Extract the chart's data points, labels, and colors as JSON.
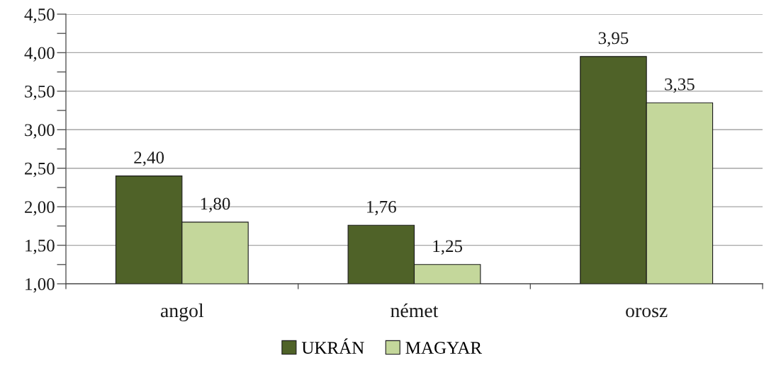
{
  "chart_data": {
    "type": "bar",
    "categories": [
      "angol",
      "német",
      "orosz"
    ],
    "series": [
      {
        "name": "UKRÁN",
        "color": "#4f6228",
        "values": [
          2.4,
          1.76,
          3.95
        ],
        "value_labels": [
          "2,40",
          "1,76",
          "3,95"
        ]
      },
      {
        "name": "MAGYAR",
        "color": "#c4d79b",
        "values": [
          1.8,
          1.25,
          3.35
        ],
        "value_labels": [
          "1,80",
          "1,25",
          "3,35"
        ]
      }
    ],
    "ylim": [
      1.0,
      4.5
    ],
    "yticks": [
      {
        "value": 1.0,
        "label": "1,00"
      },
      {
        "value": 1.25,
        "label": null
      },
      {
        "value": 1.5,
        "label": "1,50"
      },
      {
        "value": 1.75,
        "label": null
      },
      {
        "value": 2.0,
        "label": "2,00"
      },
      {
        "value": 2.25,
        "label": null
      },
      {
        "value": 2.5,
        "label": "2,50"
      },
      {
        "value": 2.75,
        "label": null
      },
      {
        "value": 3.0,
        "label": "3,00"
      },
      {
        "value": 3.25,
        "label": null
      },
      {
        "value": 3.5,
        "label": "3,50"
      },
      {
        "value": 3.75,
        "label": null
      },
      {
        "value": 4.0,
        "label": "4,00"
      },
      {
        "value": 4.25,
        "label": null
      },
      {
        "value": 4.5,
        "label": "4,50"
      }
    ],
    "grid": "y",
    "legend": "bottom"
  }
}
